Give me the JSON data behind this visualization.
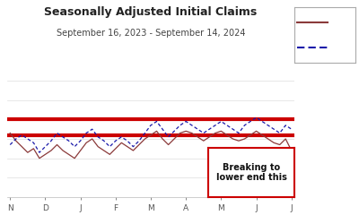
{
  "title": "Seasonally Adjusted Initial Claims",
  "subtitle": "September 16, 2023 - September 14, 2024",
  "upper_band": 235,
  "lower_band": 227,
  "ylim_min": 195,
  "ylim_max": 255,
  "x_ticks": [
    "N",
    "D",
    "J",
    "F",
    "M",
    "A",
    "M",
    "J",
    "J"
  ],
  "actual_values": [
    228,
    224,
    221,
    218,
    220,
    215,
    217,
    219,
    222,
    219,
    217,
    215,
    219,
    223,
    225,
    221,
    219,
    217,
    220,
    223,
    221,
    219,
    222,
    225,
    227,
    229,
    225,
    222,
    225,
    228,
    229,
    228,
    226,
    224,
    226,
    228,
    229,
    227,
    225,
    224,
    225,
    227,
    229,
    227,
    225,
    223,
    222,
    225,
    219
  ],
  "estimate_values": [
    222,
    225,
    227,
    225,
    223,
    218,
    221,
    224,
    228,
    226,
    224,
    221,
    224,
    228,
    230,
    226,
    224,
    221,
    224,
    226,
    224,
    221,
    224,
    228,
    232,
    234,
    230,
    226,
    229,
    232,
    234,
    232,
    230,
    228,
    230,
    232,
    234,
    232,
    230,
    228,
    232,
    234,
    236,
    234,
    232,
    230,
    228,
    232,
    230
  ],
  "upper_color": "#cc0000",
  "lower_color": "#cc0000",
  "actual_color": "#8B3A3A",
  "estimate_color": "#1a1aaa",
  "annotation_text": "Breaking to\nlower end this",
  "annotation_box_color": "#cc0000",
  "background_color": "#ffffff",
  "grid_color": "#dddddd",
  "tick_color": "#555555",
  "title_fontsize": 9,
  "subtitle_fontsize": 7,
  "tick_fontsize": 6.5,
  "band_linewidth": 3.0,
  "data_linewidth": 0.9
}
